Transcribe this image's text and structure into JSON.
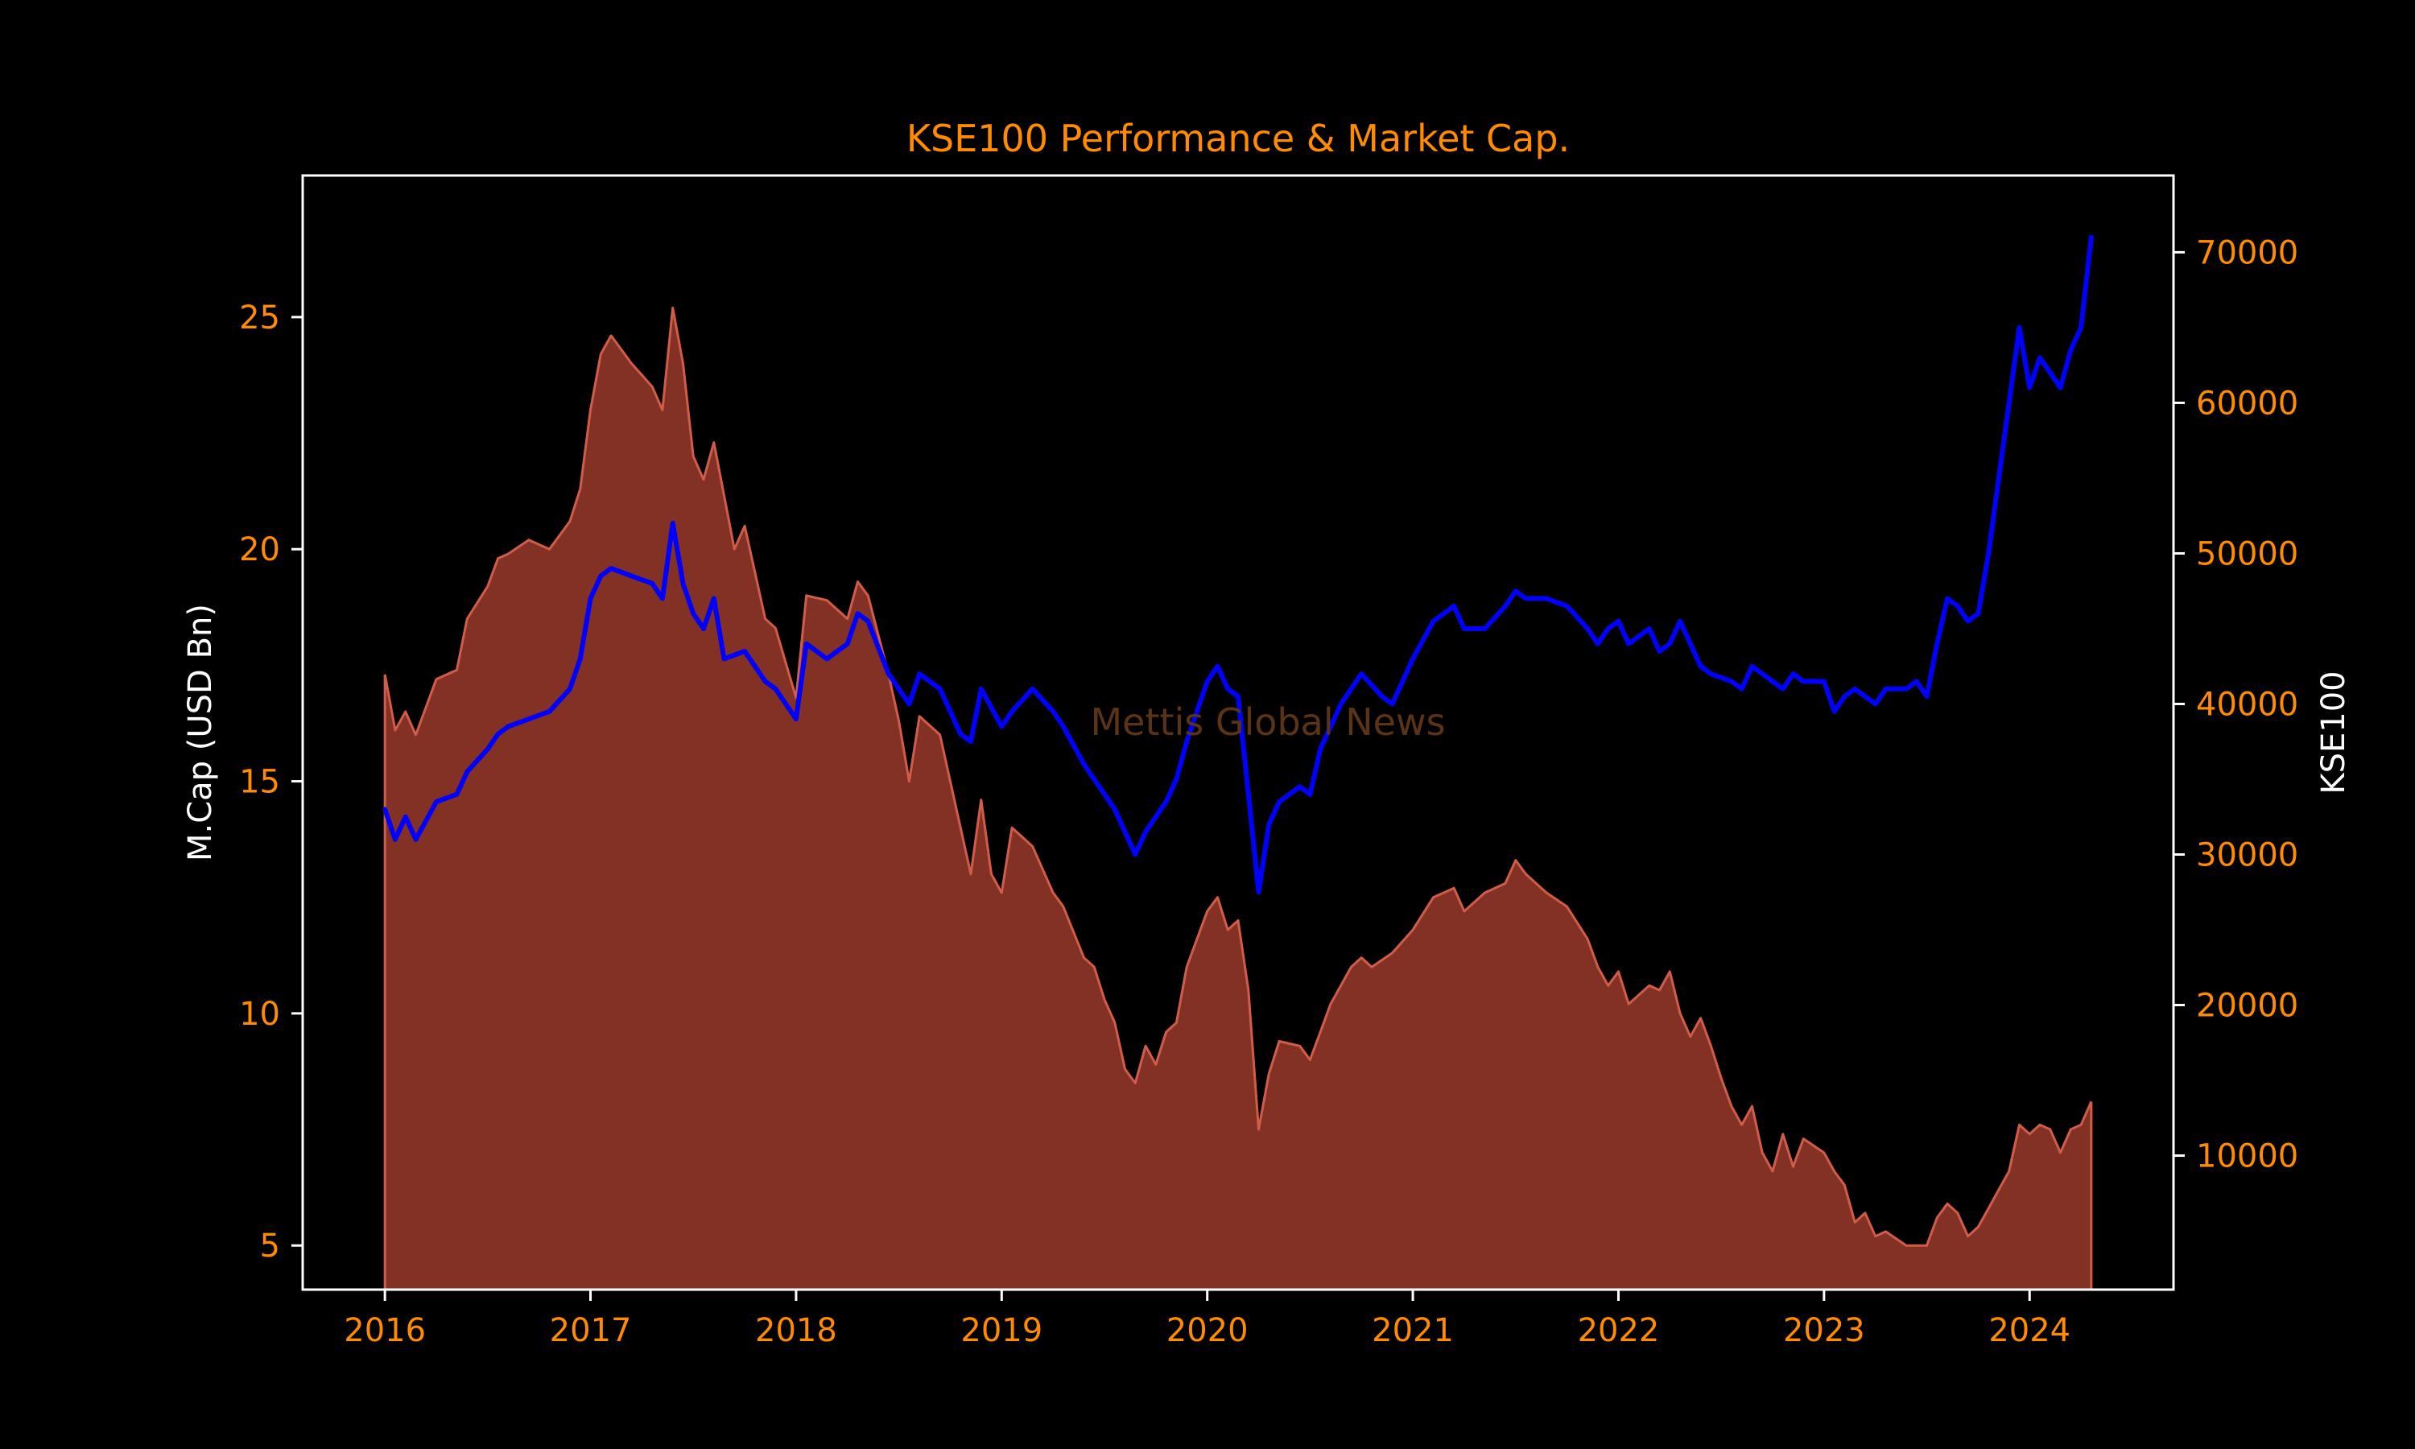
{
  "chart_data": {
    "type": "area",
    "title": "KSE100 Performance & Market Cap.",
    "watermark": "Mettis Global News",
    "x_ticks": [
      "2016",
      "2017",
      "2018",
      "2019",
      "2020",
      "2021",
      "2022",
      "2023",
      "2024"
    ],
    "x_range": [
      2015.6,
      2024.7
    ],
    "left_axis": {
      "label": "M.Cap (USD Bn)",
      "range": [
        4.05,
        28.05
      ],
      "ticks": [
        5,
        10,
        15,
        20,
        25
      ]
    },
    "right_axis": {
      "label": "KSE100",
      "range": [
        1100,
        75100
      ],
      "ticks": [
        10000,
        20000,
        30000,
        40000,
        50000,
        60000,
        70000
      ]
    },
    "series": [
      {
        "name": "M.Cap (USD Bn)",
        "axis": "left",
        "style": "area",
        "points": [
          [
            2016.0,
            17.3
          ],
          [
            2016.05,
            16.1
          ],
          [
            2016.1,
            16.5
          ],
          [
            2016.15,
            16.0
          ],
          [
            2016.25,
            17.2
          ],
          [
            2016.35,
            17.4
          ],
          [
            2016.4,
            18.5
          ],
          [
            2016.5,
            19.2
          ],
          [
            2016.55,
            19.8
          ],
          [
            2016.6,
            19.9
          ],
          [
            2016.7,
            20.2
          ],
          [
            2016.8,
            20.0
          ],
          [
            2016.9,
            20.6
          ],
          [
            2016.95,
            21.3
          ],
          [
            2017.0,
            23.0
          ],
          [
            2017.05,
            24.2
          ],
          [
            2017.1,
            24.6
          ],
          [
            2017.2,
            24.0
          ],
          [
            2017.3,
            23.5
          ],
          [
            2017.35,
            23.0
          ],
          [
            2017.4,
            25.2
          ],
          [
            2017.45,
            24.0
          ],
          [
            2017.5,
            22.0
          ],
          [
            2017.55,
            21.5
          ],
          [
            2017.6,
            22.3
          ],
          [
            2017.7,
            20.0
          ],
          [
            2017.75,
            20.5
          ],
          [
            2017.85,
            18.5
          ],
          [
            2017.9,
            18.3
          ],
          [
            2018.0,
            16.8
          ],
          [
            2018.05,
            19.0
          ],
          [
            2018.15,
            18.9
          ],
          [
            2018.25,
            18.5
          ],
          [
            2018.3,
            19.3
          ],
          [
            2018.35,
            19.0
          ],
          [
            2018.45,
            17.3
          ],
          [
            2018.5,
            16.3
          ],
          [
            2018.55,
            15.0
          ],
          [
            2018.6,
            16.4
          ],
          [
            2018.7,
            16.0
          ],
          [
            2018.8,
            14.0
          ],
          [
            2018.85,
            13.0
          ],
          [
            2018.9,
            14.6
          ],
          [
            2018.95,
            13.0
          ],
          [
            2019.0,
            12.6
          ],
          [
            2019.05,
            14.0
          ],
          [
            2019.15,
            13.6
          ],
          [
            2019.25,
            12.6
          ],
          [
            2019.3,
            12.3
          ],
          [
            2019.4,
            11.2
          ],
          [
            2019.45,
            11.0
          ],
          [
            2019.5,
            10.3
          ],
          [
            2019.55,
            9.8
          ],
          [
            2019.6,
            8.8
          ],
          [
            2019.65,
            8.5
          ],
          [
            2019.7,
            9.3
          ],
          [
            2019.75,
            8.9
          ],
          [
            2019.8,
            9.6
          ],
          [
            2019.85,
            9.8
          ],
          [
            2019.9,
            11.0
          ],
          [
            2019.95,
            11.6
          ],
          [
            2020.0,
            12.2
          ],
          [
            2020.05,
            12.5
          ],
          [
            2020.1,
            11.8
          ],
          [
            2020.15,
            12.0
          ],
          [
            2020.2,
            10.5
          ],
          [
            2020.25,
            7.5
          ],
          [
            2020.3,
            8.7
          ],
          [
            2020.35,
            9.4
          ],
          [
            2020.45,
            9.3
          ],
          [
            2020.5,
            9.0
          ],
          [
            2020.55,
            9.6
          ],
          [
            2020.6,
            10.2
          ],
          [
            2020.7,
            11.0
          ],
          [
            2020.75,
            11.2
          ],
          [
            2020.8,
            11.0
          ],
          [
            2020.9,
            11.3
          ],
          [
            2021.0,
            11.8
          ],
          [
            2021.1,
            12.5
          ],
          [
            2021.2,
            12.7
          ],
          [
            2021.25,
            12.2
          ],
          [
            2021.35,
            12.6
          ],
          [
            2021.45,
            12.8
          ],
          [
            2021.5,
            13.3
          ],
          [
            2021.55,
            13.0
          ],
          [
            2021.65,
            12.6
          ],
          [
            2021.75,
            12.3
          ],
          [
            2021.85,
            11.6
          ],
          [
            2021.9,
            11.0
          ],
          [
            2021.95,
            10.6
          ],
          [
            2022.0,
            10.9
          ],
          [
            2022.05,
            10.2
          ],
          [
            2022.15,
            10.6
          ],
          [
            2022.2,
            10.5
          ],
          [
            2022.25,
            10.9
          ],
          [
            2022.3,
            10.0
          ],
          [
            2022.35,
            9.5
          ],
          [
            2022.4,
            9.9
          ],
          [
            2022.45,
            9.3
          ],
          [
            2022.5,
            8.6
          ],
          [
            2022.55,
            8.0
          ],
          [
            2022.6,
            7.6
          ],
          [
            2022.65,
            8.0
          ],
          [
            2022.7,
            7.0
          ],
          [
            2022.75,
            6.6
          ],
          [
            2022.8,
            7.4
          ],
          [
            2022.85,
            6.7
          ],
          [
            2022.9,
            7.3
          ],
          [
            2023.0,
            7.0
          ],
          [
            2023.05,
            6.6
          ],
          [
            2023.1,
            6.3
          ],
          [
            2023.15,
            5.5
          ],
          [
            2023.2,
            5.7
          ],
          [
            2023.25,
            5.2
          ],
          [
            2023.3,
            5.3
          ],
          [
            2023.4,
            5.0
          ],
          [
            2023.5,
            5.0
          ],
          [
            2023.55,
            5.6
          ],
          [
            2023.6,
            5.9
          ],
          [
            2023.65,
            5.7
          ],
          [
            2023.7,
            5.2
          ],
          [
            2023.75,
            5.4
          ],
          [
            2023.8,
            5.8
          ],
          [
            2023.85,
            6.2
          ],
          [
            2023.9,
            6.6
          ],
          [
            2023.95,
            7.6
          ],
          [
            2024.0,
            7.4
          ],
          [
            2024.05,
            7.6
          ],
          [
            2024.1,
            7.5
          ],
          [
            2024.15,
            7.0
          ],
          [
            2024.2,
            7.5
          ],
          [
            2024.25,
            7.6
          ],
          [
            2024.3,
            8.1
          ]
        ]
      },
      {
        "name": "KSE100",
        "axis": "right",
        "style": "line",
        "points": [
          [
            2016.0,
            33000
          ],
          [
            2016.05,
            31000
          ],
          [
            2016.1,
            32500
          ],
          [
            2016.15,
            31000
          ],
          [
            2016.25,
            33500
          ],
          [
            2016.35,
            34000
          ],
          [
            2016.4,
            35500
          ],
          [
            2016.5,
            37000
          ],
          [
            2016.55,
            38000
          ],
          [
            2016.6,
            38500
          ],
          [
            2016.7,
            39000
          ],
          [
            2016.8,
            39500
          ],
          [
            2016.9,
            41000
          ],
          [
            2016.95,
            43000
          ],
          [
            2017.0,
            47000
          ],
          [
            2017.05,
            48500
          ],
          [
            2017.1,
            49000
          ],
          [
            2017.2,
            48500
          ],
          [
            2017.3,
            48000
          ],
          [
            2017.35,
            47000
          ],
          [
            2017.4,
            52000
          ],
          [
            2017.45,
            48000
          ],
          [
            2017.5,
            46000
          ],
          [
            2017.55,
            45000
          ],
          [
            2017.6,
            47000
          ],
          [
            2017.65,
            43000
          ],
          [
            2017.75,
            43500
          ],
          [
            2017.85,
            41500
          ],
          [
            2017.9,
            41000
          ],
          [
            2018.0,
            39000
          ],
          [
            2018.05,
            44000
          ],
          [
            2018.15,
            43000
          ],
          [
            2018.25,
            44000
          ],
          [
            2018.3,
            46000
          ],
          [
            2018.35,
            45500
          ],
          [
            2018.45,
            42000
          ],
          [
            2018.5,
            41000
          ],
          [
            2018.55,
            40000
          ],
          [
            2018.6,
            42000
          ],
          [
            2018.7,
            41000
          ],
          [
            2018.8,
            38000
          ],
          [
            2018.85,
            37500
          ],
          [
            2018.9,
            41000
          ],
          [
            2019.0,
            38500
          ],
          [
            2019.05,
            39500
          ],
          [
            2019.15,
            41000
          ],
          [
            2019.25,
            39500
          ],
          [
            2019.3,
            38500
          ],
          [
            2019.4,
            36000
          ],
          [
            2019.45,
            35000
          ],
          [
            2019.5,
            34000
          ],
          [
            2019.55,
            33000
          ],
          [
            2019.6,
            31500
          ],
          [
            2019.65,
            30000
          ],
          [
            2019.7,
            31500
          ],
          [
            2019.75,
            32500
          ],
          [
            2019.8,
            33500
          ],
          [
            2019.85,
            35000
          ],
          [
            2019.9,
            37500
          ],
          [
            2019.95,
            39500
          ],
          [
            2020.0,
            41500
          ],
          [
            2020.05,
            42500
          ],
          [
            2020.1,
            41000
          ],
          [
            2020.15,
            40500
          ],
          [
            2020.2,
            34000
          ],
          [
            2020.25,
            27500
          ],
          [
            2020.3,
            32000
          ],
          [
            2020.35,
            33500
          ],
          [
            2020.45,
            34500
          ],
          [
            2020.5,
            34000
          ],
          [
            2020.55,
            37000
          ],
          [
            2020.65,
            40000
          ],
          [
            2020.75,
            42000
          ],
          [
            2020.85,
            40500
          ],
          [
            2020.9,
            40000
          ],
          [
            2021.0,
            43000
          ],
          [
            2021.1,
            45500
          ],
          [
            2021.2,
            46500
          ],
          [
            2021.25,
            45000
          ],
          [
            2021.35,
            45000
          ],
          [
            2021.45,
            46500
          ],
          [
            2021.5,
            47500
          ],
          [
            2021.55,
            47000
          ],
          [
            2021.65,
            47000
          ],
          [
            2021.75,
            46500
          ],
          [
            2021.85,
            45000
          ],
          [
            2021.9,
            44000
          ],
          [
            2021.95,
            45000
          ],
          [
            2022.0,
            45500
          ],
          [
            2022.05,
            44000
          ],
          [
            2022.15,
            45000
          ],
          [
            2022.2,
            43500
          ],
          [
            2022.25,
            44000
          ],
          [
            2022.3,
            45500
          ],
          [
            2022.35,
            44000
          ],
          [
            2022.4,
            42500
          ],
          [
            2022.45,
            42000
          ],
          [
            2022.55,
            41500
          ],
          [
            2022.6,
            41000
          ],
          [
            2022.65,
            42500
          ],
          [
            2022.7,
            42000
          ],
          [
            2022.75,
            41500
          ],
          [
            2022.8,
            41000
          ],
          [
            2022.85,
            42000
          ],
          [
            2022.9,
            41500
          ],
          [
            2023.0,
            41500
          ],
          [
            2023.05,
            39500
          ],
          [
            2023.1,
            40500
          ],
          [
            2023.15,
            41000
          ],
          [
            2023.2,
            40500
          ],
          [
            2023.25,
            40000
          ],
          [
            2023.3,
            41000
          ],
          [
            2023.4,
            41000
          ],
          [
            2023.45,
            41500
          ],
          [
            2023.5,
            40500
          ],
          [
            2023.55,
            44000
          ],
          [
            2023.6,
            47000
          ],
          [
            2023.65,
            46500
          ],
          [
            2023.7,
            45500
          ],
          [
            2023.75,
            46000
          ],
          [
            2023.8,
            50000
          ],
          [
            2023.85,
            55000
          ],
          [
            2023.9,
            60000
          ],
          [
            2023.95,
            65000
          ],
          [
            2024.0,
            61000
          ],
          [
            2024.05,
            63000
          ],
          [
            2024.1,
            62000
          ],
          [
            2024.15,
            61000
          ],
          [
            2024.2,
            63500
          ],
          [
            2024.25,
            65000
          ],
          [
            2024.3,
            71000
          ]
        ]
      }
    ],
    "colors": {
      "background": "#000000",
      "axis_frame": "#ffffff",
      "tick_labels": "#ff8c00",
      "title": "#ff8c00",
      "axis_labels": "#ffffff",
      "mcap_fill": "#843125",
      "mcap_line": "#d15d49",
      "kse_line": "#0000ff",
      "watermark": "#5a3415"
    },
    "grid": false,
    "legend": "none"
  }
}
